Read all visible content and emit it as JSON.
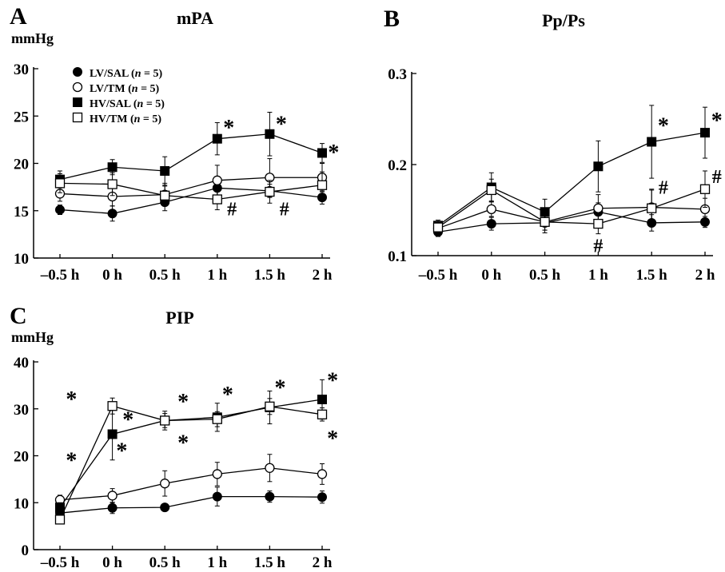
{
  "chart_data": [
    {
      "panel_letter": "A",
      "type": "line",
      "title": "mPA",
      "ylabel": "mmHg",
      "categories": [
        "–0.5 h",
        "0 h",
        "0.5 h",
        "1 h",
        "1.5 h",
        "2 h"
      ],
      "ylim": [
        10,
        30
      ],
      "yticks": [
        "10",
        "15",
        "20",
        "25",
        "30"
      ],
      "legend_position": "top-left",
      "series": [
        {
          "name": "LV/SAL",
          "n_label": "(n = 5)",
          "marker": "filled-circle",
          "values": [
            15.1,
            14.7,
            15.9,
            17.4,
            17.1,
            16.4
          ],
          "errors": [
            0.5,
            0.8,
            0.9,
            0.8,
            0.7,
            0.7
          ]
        },
        {
          "name": "LV/TM",
          "n_label": "(n = 5)",
          "marker": "open-circle",
          "values": [
            16.8,
            16.5,
            16.7,
            18.2,
            18.5,
            18.5
          ],
          "errors": [
            0.8,
            1.0,
            1.2,
            1.6,
            2.0,
            1.5
          ]
        },
        {
          "name": "HV/SAL",
          "n_label": "(n = 5)",
          "marker": "filled-square",
          "values": [
            18.3,
            19.6,
            19.2,
            22.6,
            23.1,
            21.1
          ],
          "errors": [
            0.9,
            0.8,
            1.5,
            1.7,
            2.3,
            1.0
          ]
        },
        {
          "name": "HV/TM",
          "n_label": "(n = 5)",
          "marker": "open-square",
          "values": [
            17.9,
            17.8,
            16.6,
            16.2,
            17.0,
            17.7
          ],
          "errors": [
            1.0,
            1.2,
            1.0,
            1.1,
            1.2,
            1.4
          ]
        }
      ],
      "annotations": [
        {
          "text": "*",
          "x": 3.22,
          "y": 24.0
        },
        {
          "text": "*",
          "x": 4.22,
          "y": 24.4
        },
        {
          "text": "*",
          "x": 5.22,
          "y": 21.4
        },
        {
          "text": "#",
          "x": 3.28,
          "y": 15.2
        },
        {
          "text": "#",
          "x": 4.28,
          "y": 15.2
        }
      ]
    },
    {
      "panel_letter": "B",
      "type": "line",
      "title": "Pp/Ps",
      "ylabel": "",
      "categories": [
        "–0.5 h",
        "0 h",
        "0.5 h",
        "1 h",
        "1.5 h",
        "2 h"
      ],
      "ylim": [
        0.1,
        0.3
      ],
      "yticks": [
        "0.1",
        "0.2",
        "0.3"
      ],
      "series": [
        {
          "name": "LV/SAL",
          "marker": "filled-circle",
          "values": [
            0.126,
            0.135,
            0.136,
            0.148,
            0.136,
            0.137
          ],
          "errors": [
            0.005,
            0.007,
            0.008,
            0.01,
            0.009,
            0.006
          ]
        },
        {
          "name": "LV/TM",
          "marker": "open-circle",
          "values": [
            0.13,
            0.151,
            0.137,
            0.152,
            0.153,
            0.151
          ],
          "errors": [
            0.006,
            0.008,
            0.009,
            0.015,
            0.02,
            0.012
          ]
        },
        {
          "name": "HV/SAL",
          "marker": "filled-square",
          "values": [
            0.133,
            0.175,
            0.148,
            0.198,
            0.225,
            0.235
          ],
          "errors": [
            0.006,
            0.016,
            0.014,
            0.028,
            0.04,
            0.028
          ]
        },
        {
          "name": "HV/TM",
          "marker": "open-square",
          "values": [
            0.131,
            0.172,
            0.137,
            0.135,
            0.152,
            0.173
          ],
          "errors": [
            0.006,
            0.012,
            0.012,
            0.011,
            0.02,
            0.02
          ]
        }
      ],
      "annotations": [
        {
          "text": "*",
          "x": 4.22,
          "y": 0.245
        },
        {
          "text": "*",
          "x": 5.22,
          "y": 0.251
        },
        {
          "text": "#",
          "x": 3.0,
          "y": 0.111
        },
        {
          "text": "#",
          "x": 4.22,
          "y": 0.175
        },
        {
          "text": "#",
          "x": 5.22,
          "y": 0.187
        }
      ]
    },
    {
      "panel_letter": "C",
      "type": "line",
      "title": "PIP",
      "ylabel": "mmHg",
      "categories": [
        "–0.5 h",
        "0 h",
        "0.5 h",
        "1 h",
        "1.5 h",
        "2 h"
      ],
      "ylim": [
        0,
        40
      ],
      "yticks": [
        "0",
        "10",
        "20",
        "30",
        "40"
      ],
      "series": [
        {
          "name": "LV/SAL",
          "marker": "filled-circle",
          "values": [
            7.8,
            8.9,
            9.0,
            11.3,
            11.3,
            11.2
          ],
          "errors": [
            0.8,
            1.2,
            0.5,
            2.0,
            1.2,
            1.3
          ]
        },
        {
          "name": "LV/TM",
          "marker": "open-circle",
          "values": [
            10.6,
            11.5,
            14.1,
            16.1,
            17.4,
            16.1
          ],
          "errors": [
            1.0,
            1.5,
            2.7,
            2.5,
            2.9,
            2.2
          ]
        },
        {
          "name": "HV/SAL",
          "marker": "filled-square",
          "values": [
            9.0,
            24.6,
            27.5,
            28.2,
            30.3,
            32.0
          ],
          "errors": [
            1.0,
            5.5,
            1.5,
            3.0,
            3.5,
            4.2
          ]
        },
        {
          "name": "HV/TM",
          "marker": "open-square",
          "values": [
            6.4,
            30.6,
            27.5,
            27.8,
            30.5,
            28.8
          ],
          "errors": [
            0.8,
            1.7,
            2.0,
            1.6,
            1.7,
            1.4
          ]
        }
      ],
      "annotations": [
        {
          "text": "*",
          "x": 0.22,
          "y": 32.5
        },
        {
          "text": "*",
          "x": 0.22,
          "y": 19.5
        },
        {
          "text": "*",
          "x": 1.3,
          "y": 28.2
        },
        {
          "text": "*",
          "x": 1.18,
          "y": 21.5
        },
        {
          "text": "*",
          "x": 2.35,
          "y": 32.0
        },
        {
          "text": "*",
          "x": 2.35,
          "y": 23.2
        },
        {
          "text": "*",
          "x": 3.2,
          "y": 33.5
        },
        {
          "text": "*",
          "x": 4.2,
          "y": 35.0
        },
        {
          "text": "*",
          "x": 5.2,
          "y": 36.5
        },
        {
          "text": "*",
          "x": 5.2,
          "y": 24.2
        }
      ]
    }
  ],
  "legend": {
    "entries": [
      {
        "name": "LV/SAL",
        "n_text": "n",
        "n_rest": " = 5)",
        "open": "("
      },
      {
        "name": "LV/TM",
        "n_text": "n",
        "n_rest": " = 5)",
        "open": "("
      },
      {
        "name": "HV/SAL",
        "n_text": "n",
        "n_rest": " = 5)",
        "open": "("
      },
      {
        "name": "HV/TM",
        "n_text": "n",
        "n_rest": " = 5)",
        "open": "("
      }
    ]
  }
}
